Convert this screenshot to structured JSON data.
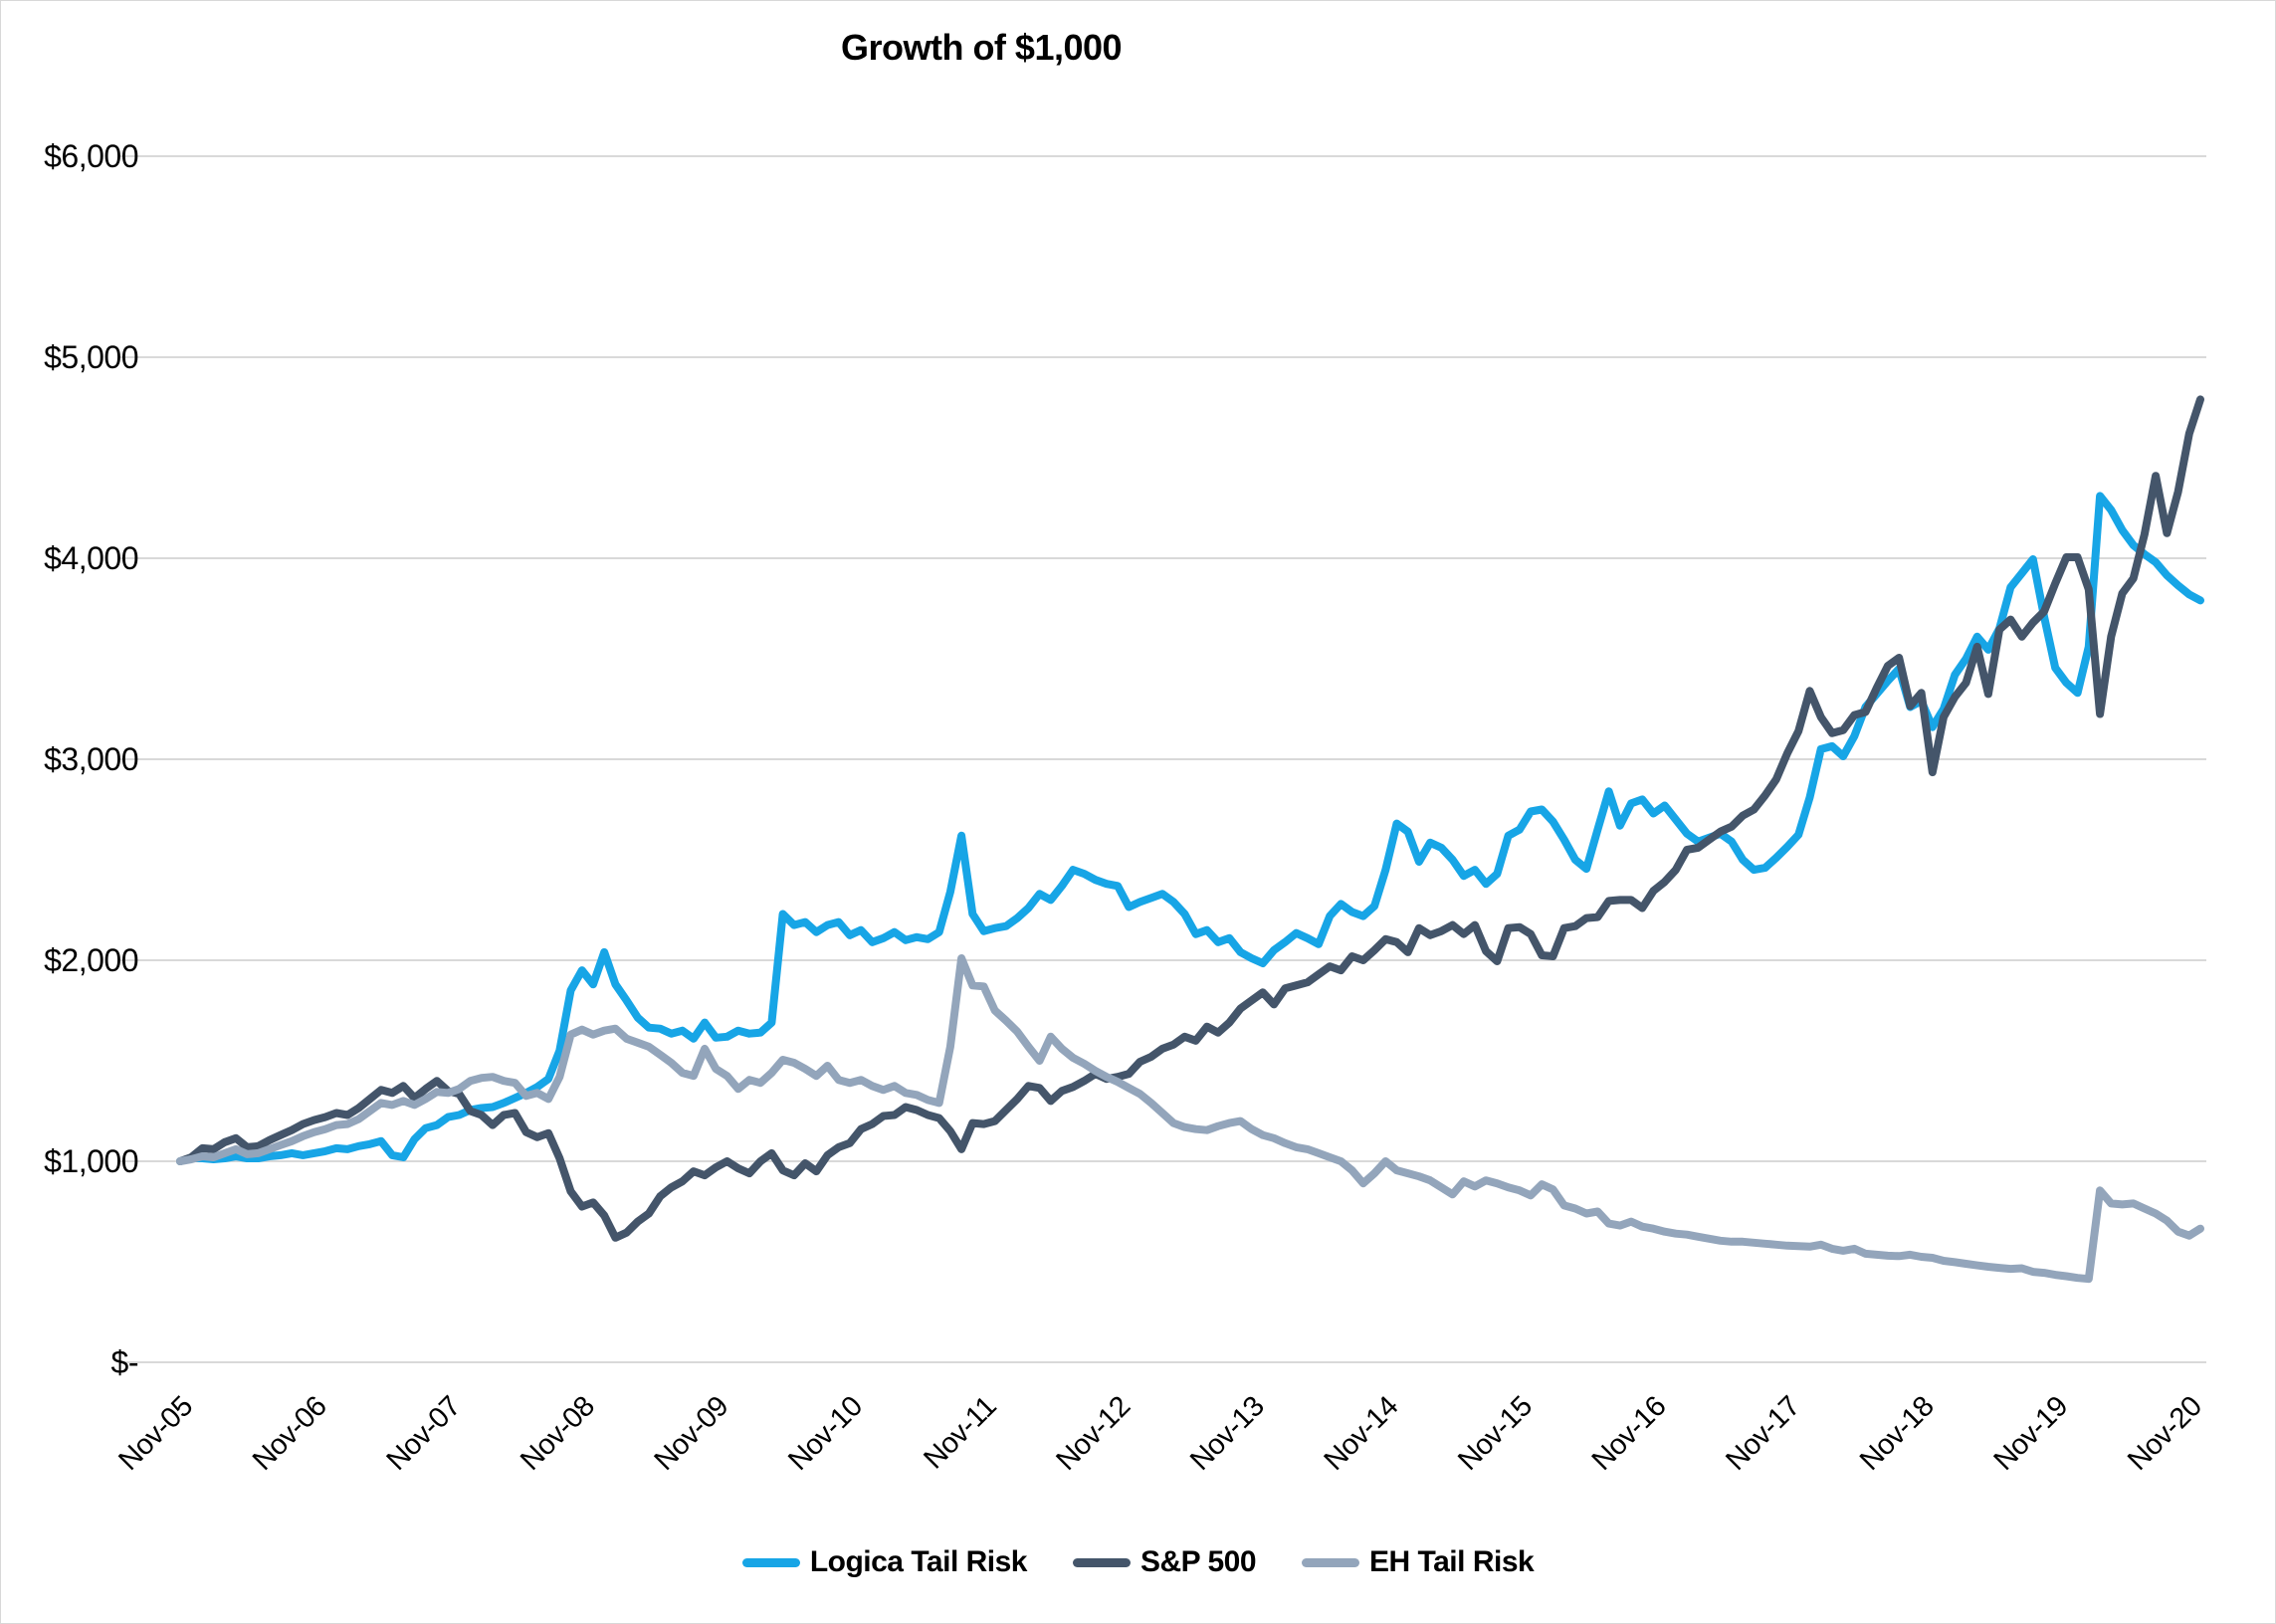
{
  "title": "Growth of $1,000",
  "legend": {
    "items": [
      {
        "label": "Logica Tail Risk",
        "color": "#17a5e6"
      },
      {
        "label": "S&P 500",
        "color": "#44556a"
      },
      {
        "label": "EH Tail Risk",
        "color": "#93a5bb"
      }
    ]
  },
  "chart_data": {
    "type": "line",
    "title": "Growth of $1,000",
    "xlabel": "",
    "ylabel": "",
    "x_start": "Nov-2005",
    "x_end": "Dec-2020",
    "x_frequency": "monthly",
    "points_per_series": 182,
    "ylim": [
      0,
      6000
    ],
    "grid": "horizontal",
    "legend_position": "bottom",
    "y_ticks": [
      {
        "value": 0,
        "label": "$-"
      },
      {
        "value": 1000,
        "label": "$1,000"
      },
      {
        "value": 2000,
        "label": "$2,000"
      },
      {
        "value": 3000,
        "label": "$3,000"
      },
      {
        "value": 4000,
        "label": "$4,000"
      },
      {
        "value": 5000,
        "label": "$5,000"
      },
      {
        "value": 6000,
        "label": "$6,000"
      }
    ],
    "x_tick_labels": [
      "Nov-05",
      "Nov-06",
      "Nov-07",
      "Nov-08",
      "Nov-09",
      "Nov-10",
      "Nov-11",
      "Nov-12",
      "Nov-13",
      "Nov-14",
      "Nov-15",
      "Nov-16",
      "Nov-17",
      "Nov-18",
      "Nov-19",
      "Nov-20"
    ],
    "series": [
      {
        "id": "logica-tail-risk",
        "name": "Logica Tail Risk",
        "color": "#17a5e6",
        "values": [
          1000,
          1015,
          1015,
          1010,
          1015,
          1025,
          1015,
          1015,
          1025,
          1030,
          1040,
          1030,
          1040,
          1050,
          1065,
          1060,
          1075,
          1085,
          1100,
          1030,
          1020,
          1110,
          1165,
          1180,
          1220,
          1230,
          1255,
          1265,
          1270,
          1290,
          1315,
          1340,
          1370,
          1410,
          1550,
          1850,
          1950,
          1880,
          2040,
          1880,
          1800,
          1715,
          1665,
          1660,
          1635,
          1650,
          1610,
          1690,
          1615,
          1620,
          1650,
          1635,
          1640,
          1690,
          2230,
          2175,
          2190,
          2140,
          2175,
          2190,
          2125,
          2150,
          2090,
          2110,
          2140,
          2100,
          2115,
          2105,
          2140,
          2340,
          2620,
          2230,
          2145,
          2160,
          2170,
          2210,
          2260,
          2330,
          2300,
          2370,
          2450,
          2430,
          2400,
          2380,
          2370,
          2265,
          2290,
          2310,
          2330,
          2290,
          2230,
          2130,
          2150,
          2090,
          2110,
          2040,
          2010,
          1985,
          2050,
          2090,
          2135,
          2110,
          2080,
          2220,
          2280,
          2240,
          2220,
          2270,
          2450,
          2680,
          2640,
          2490,
          2585,
          2560,
          2500,
          2420,
          2450,
          2380,
          2430,
          2620,
          2650,
          2740,
          2750,
          2690,
          2600,
          2500,
          2455,
          2650,
          2840,
          2670,
          2780,
          2800,
          2730,
          2770,
          2700,
          2630,
          2590,
          2610,
          2630,
          2590,
          2500,
          2450,
          2460,
          2510,
          2565,
          2625,
          2810,
          3050,
          3065,
          3015,
          3115,
          3260,
          3325,
          3390,
          3450,
          3260,
          3290,
          3160,
          3250,
          3420,
          3500,
          3610,
          3545,
          3650,
          3855,
          3925,
          3995,
          3710,
          3455,
          3380,
          3330,
          3560,
          4310,
          4240,
          4140,
          4065,
          4020,
          3980,
          3915,
          3865,
          3820,
          3790
        ]
      },
      {
        "id": "sp-500",
        "name": "S&P 500",
        "color": "#44556a",
        "values": [
          1000,
          1020,
          1065,
          1060,
          1095,
          1115,
          1070,
          1075,
          1105,
          1130,
          1155,
          1185,
          1205,
          1220,
          1240,
          1230,
          1265,
          1310,
          1355,
          1340,
          1375,
          1315,
          1360,
          1400,
          1350,
          1335,
          1250,
          1230,
          1180,
          1230,
          1240,
          1145,
          1120,
          1140,
          1015,
          850,
          775,
          795,
          730,
          620,
          645,
          700,
          740,
          825,
          870,
          900,
          950,
          930,
          970,
          1000,
          965,
          940,
          1000,
          1040,
          955,
          930,
          990,
          950,
          1030,
          1070,
          1090,
          1160,
          1185,
          1225,
          1230,
          1270,
          1255,
          1230,
          1215,
          1150,
          1060,
          1190,
          1185,
          1200,
          1255,
          1310,
          1375,
          1365,
          1300,
          1350,
          1370,
          1400,
          1435,
          1410,
          1420,
          1435,
          1495,
          1520,
          1560,
          1580,
          1620,
          1600,
          1670,
          1640,
          1690,
          1760,
          1800,
          1840,
          1780,
          1860,
          1875,
          1890,
          1930,
          1970,
          1950,
          2020,
          2000,
          2050,
          2105,
          2090,
          2040,
          2160,
          2125,
          2145,
          2175,
          2130,
          2175,
          2045,
          1995,
          2160,
          2165,
          2130,
          2025,
          2020,
          2160,
          2170,
          2210,
          2215,
          2295,
          2300,
          2300,
          2260,
          2345,
          2390,
          2450,
          2550,
          2560,
          2600,
          2640,
          2665,
          2720,
          2750,
          2820,
          2900,
          3030,
          3140,
          3340,
          3210,
          3130,
          3145,
          3220,
          3235,
          3355,
          3465,
          3505,
          3265,
          3330,
          2935,
          3210,
          3310,
          3380,
          3560,
          3325,
          3645,
          3695,
          3610,
          3680,
          3735,
          3875,
          4005,
          4005,
          3845,
          3225,
          3610,
          3825,
          3900,
          4120,
          4410,
          4125,
          4330,
          4620,
          4790
        ]
      },
      {
        "id": "eh-tail-risk",
        "name": "EH Tail Risk",
        "color": "#93a5bb",
        "values": [
          1000,
          1010,
          1025,
          1020,
          1040,
          1060,
          1035,
          1040,
          1060,
          1080,
          1100,
          1125,
          1145,
          1160,
          1180,
          1185,
          1210,
          1250,
          1290,
          1280,
          1300,
          1280,
          1310,
          1345,
          1340,
          1360,
          1400,
          1415,
          1420,
          1400,
          1390,
          1325,
          1340,
          1310,
          1420,
          1630,
          1655,
          1630,
          1650,
          1660,
          1610,
          1590,
          1570,
          1530,
          1490,
          1440,
          1425,
          1560,
          1460,
          1425,
          1360,
          1405,
          1390,
          1440,
          1505,
          1490,
          1460,
          1425,
          1475,
          1405,
          1390,
          1405,
          1375,
          1355,
          1375,
          1340,
          1330,
          1305,
          1290,
          1570,
          2010,
          1875,
          1870,
          1750,
          1700,
          1645,
          1570,
          1500,
          1620,
          1560,
          1515,
          1485,
          1450,
          1420,
          1395,
          1365,
          1335,
          1290,
          1240,
          1190,
          1170,
          1160,
          1155,
          1175,
          1190,
          1200,
          1160,
          1130,
          1115,
          1090,
          1070,
          1060,
          1040,
          1020,
          1000,
          955,
          890,
          940,
          1000,
          955,
          940,
          925,
          905,
          870,
          835,
          900,
          875,
          905,
          890,
          870,
          855,
          830,
          885,
          860,
          780,
          765,
          740,
          750,
          690,
          680,
          700,
          675,
          665,
          650,
          640,
          635,
          625,
          615,
          605,
          600,
          600,
          595,
          590,
          585,
          580,
          578,
          575,
          585,
          565,
          555,
          565,
          540,
          535,
          530,
          528,
          535,
          525,
          520,
          505,
          498,
          490,
          482,
          475,
          470,
          465,
          468,
          450,
          445,
          435,
          428,
          420,
          415,
          855,
          790,
          785,
          790,
          765,
          740,
          705,
          650,
          630,
          665
        ]
      }
    ]
  }
}
